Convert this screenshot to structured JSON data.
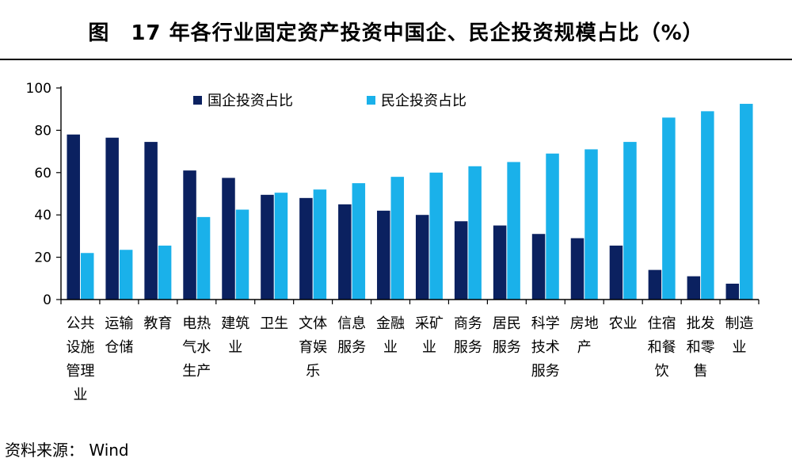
{
  "figure": {
    "title": "图　17 年各行业固定资产投资中国企、民企投资规模占比（%）",
    "source": "资料来源：  Wind"
  },
  "colors": {
    "soe": "#0b2160",
    "private": "#1ab1ea",
    "axis": "#000000"
  },
  "chart_data": {
    "type": "bar",
    "title": "",
    "xlabel": "",
    "ylabel": "",
    "ylim": [
      0,
      100
    ],
    "yticks": [
      0,
      20,
      40,
      60,
      80,
      100
    ],
    "grid": false,
    "legend_position": "top-center",
    "categories": [
      [
        "公共",
        "设施",
        "管理",
        "业"
      ],
      [
        "运输",
        "仓储"
      ],
      [
        "教育"
      ],
      [
        "电热",
        "气水",
        "生产"
      ],
      [
        "建筑",
        "业"
      ],
      [
        "卫生"
      ],
      [
        "文体",
        "育娱",
        "乐"
      ],
      [
        "信息",
        "服务"
      ],
      [
        "金融",
        "业"
      ],
      [
        "采矿",
        "业"
      ],
      [
        "商务",
        "服务"
      ],
      [
        "居民",
        "服务"
      ],
      [
        "科学",
        "技术",
        "服务"
      ],
      [
        "房地",
        "产"
      ],
      [
        "农业"
      ],
      [
        "住宿",
        "和餐",
        "饮"
      ],
      [
        "批发",
        "和零",
        "售"
      ],
      [
        "制造",
        "业"
      ]
    ],
    "series": [
      {
        "name": "国企投资占比",
        "values": [
          78,
          76.5,
          74.5,
          61,
          57.5,
          49.5,
          48,
          45,
          42,
          40,
          37,
          35,
          31,
          29,
          25.5,
          14,
          11,
          7.5
        ]
      },
      {
        "name": "民企投资占比",
        "values": [
          22,
          23.5,
          25.5,
          39,
          42.5,
          50.5,
          52,
          55,
          58,
          60,
          63,
          65,
          69,
          71,
          74.5,
          86,
          89,
          92.5
        ]
      }
    ]
  }
}
